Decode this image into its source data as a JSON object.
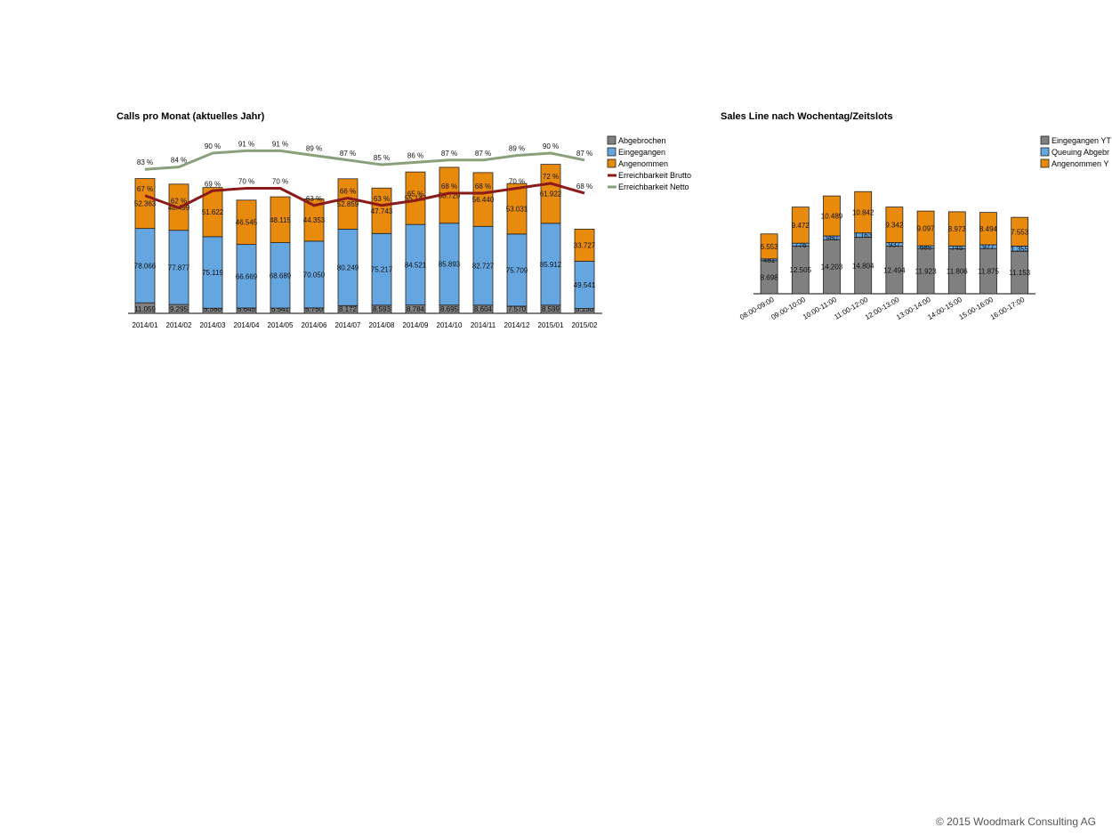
{
  "footer": "© 2015 Woodmark Consulting AG",
  "colors": {
    "abgebrochen": "#808080",
    "eingegangen": "#66a6e0",
    "angenommen": "#e88a0c",
    "brutto": "#8b1a1a",
    "netto": "#8aa07a",
    "queuing": "#66a6e0"
  },
  "chart_data": [
    {
      "type": "bar",
      "title": "Calls pro Monat (aktuelles Jahr)",
      "stacked": true,
      "categories": [
        "2014/01",
        "2014/02",
        "2014/03",
        "2014/04",
        "2014/05",
        "2014/06",
        "2014/07",
        "2014/08",
        "2014/09",
        "2014/10",
        "2014/11",
        "2014/12",
        "2015/01",
        "2015/02"
      ],
      "series": [
        {
          "name": "Abgebrochen",
          "color_key": "abgebrochen",
          "values": [
            11059,
            9295,
            5380,
            5645,
            5541,
            5750,
            8172,
            8593,
            8784,
            8695,
            8604,
            7570,
            8599,
            5130
          ],
          "labels": [
            "11.059",
            "9.295",
            "5.380",
            "5.645",
            "5.541",
            "5.750",
            "8.172",
            "8.593",
            "8.784",
            "8.695",
            "8.604",
            "7.570",
            "8.599",
            "5.130"
          ]
        },
        {
          "name": "Eingegangen",
          "color_key": "eingegangen",
          "values": [
            78066,
            77877,
            75119,
            66669,
            68689,
            70050,
            80249,
            75217,
            84521,
            85893,
            82727,
            75709,
            85912,
            49541
          ],
          "labels": [
            "78.066",
            "77.877",
            "75.119",
            "66.669",
            "68.689",
            "70.050",
            "80.249",
            "75.217",
            "84.521",
            "85.893",
            "82.727",
            "75.709",
            "85.912",
            "49.541"
          ]
        },
        {
          "name": "Angenommen",
          "color_key": "angenommen",
          "values": [
            52363,
            48499,
            51622,
            46545,
            48115,
            44353,
            52859,
            47743,
            55147,
            58729,
            56440,
            53031,
            61922,
            33727
          ],
          "labels": [
            "52.363",
            "48.499",
            "51.622",
            "46.545",
            "48.115",
            "44.353",
            "52.859",
            "47.743",
            "55.147",
            "58.729",
            "56.440",
            "53.031",
            "61.922",
            "33.727"
          ]
        }
      ],
      "lines": [
        {
          "name": "Erreichbarkeit Brutto",
          "color_key": "brutto",
          "values": [
            67,
            62,
            69,
            70,
            70,
            63,
            66,
            63,
            65,
            68,
            68,
            70,
            72,
            68
          ],
          "labels": [
            "67 %",
            "62 %",
            "69 %",
            "70 %",
            "70 %",
            "63 %",
            "66 %",
            "63 %",
            "65 %",
            "68 %",
            "68 %",
            "70 %",
            "72 %",
            "68 %"
          ]
        },
        {
          "name": "Erreichbarkeit Netto",
          "color_key": "netto",
          "values": [
            83,
            84,
            90,
            91,
            91,
            89,
            87,
            85,
            86,
            87,
            87,
            89,
            90,
            87
          ],
          "labels": [
            "83 %",
            "84 %",
            "90 %",
            "91 %",
            "91 %",
            "89 %",
            "87 %",
            "85 %",
            "86 %",
            "87 %",
            "87 %",
            "89 %",
            "90 %",
            "87 %"
          ]
        }
      ],
      "legend_position": "top-right",
      "grid": false
    },
    {
      "type": "bar",
      "title": "Sales Line nach Wochentag/Zeitslots",
      "stacked": true,
      "categories": [
        "08:00-09:00",
        "09:00-10:00",
        "10:00-11:00",
        "11:00-12:00",
        "12:00-13:00",
        "13:00-14:00",
        "14:00-15:00",
        "15:00-16:00",
        "16:00-17:00"
      ],
      "series": [
        {
          "name": "Eingegangen YT",
          "color_key": "abgebrochen",
          "values": [
            8698,
            12505,
            14203,
            14804,
            12494,
            11923,
            11806,
            11875,
            11153
          ],
          "labels": [
            "8.698",
            "12.505",
            "14.203",
            "14.804",
            "12.494",
            "11.923",
            "11.806",
            "11.875",
            "11.153"
          ]
        },
        {
          "name": "Queuing Abgebr",
          "color_key": "queuing",
          "values": [
            461,
            776,
            980,
            1163,
            937,
            685,
            745,
            977,
            1355
          ],
          "labels": [
            "461",
            "776",
            "980",
            "1.163",
            "937",
            "685",
            "745",
            "977",
            "1.355"
          ]
        },
        {
          "name": "Angenommen Y",
          "color_key": "angenommen",
          "values": [
            6553,
            9472,
            10489,
            10842,
            9342,
            9097,
            8973,
            8494,
            7553
          ],
          "labels": [
            "6.553",
            "9.472",
            "10.489",
            "10.842",
            "9.342",
            "9.097",
            "8.973",
            "8.494",
            "7.553"
          ]
        }
      ],
      "legend_position": "top-right",
      "grid": false
    }
  ]
}
